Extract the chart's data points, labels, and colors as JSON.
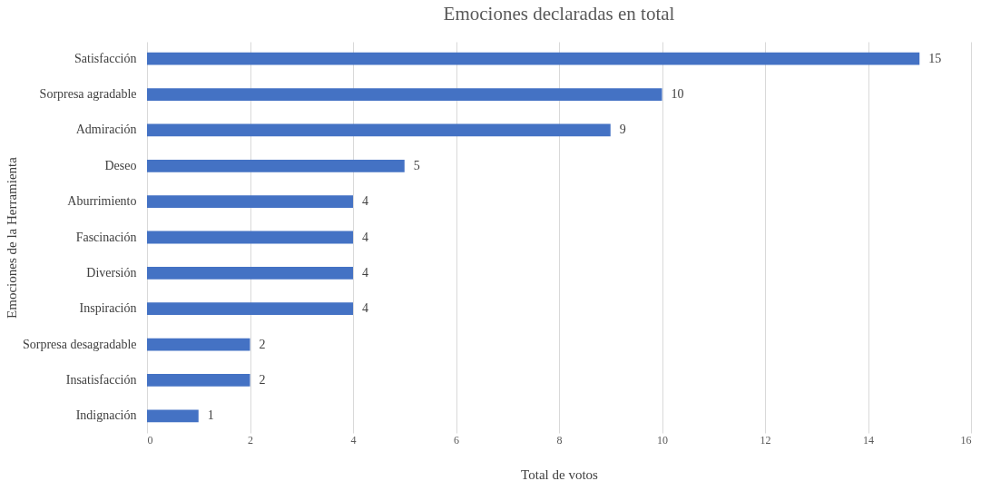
{
  "chart_data": {
    "type": "bar",
    "orientation": "horizontal",
    "title": "Emociones  declaradas  en total",
    "xlabel": "Total de votos",
    "ylabel": "Emociones de la Herramienta",
    "categories": [
      "Satisfacción",
      "Sorpresa agradable",
      "Admiración",
      "Deseo",
      "Aburrimiento",
      "Fascinación",
      "Diversión",
      "Inspiración",
      "Sorpresa desagradable",
      "Insatisfacción",
      "Indignación"
    ],
    "values": [
      15,
      10,
      9,
      5,
      4,
      4,
      4,
      4,
      2,
      2,
      1
    ],
    "color": "#4472c4",
    "xlim": [
      0,
      16
    ],
    "xticks": [
      0,
      2,
      4,
      6,
      8,
      10,
      12,
      14,
      16
    ],
    "grid": "x",
    "data_labels": true
  }
}
